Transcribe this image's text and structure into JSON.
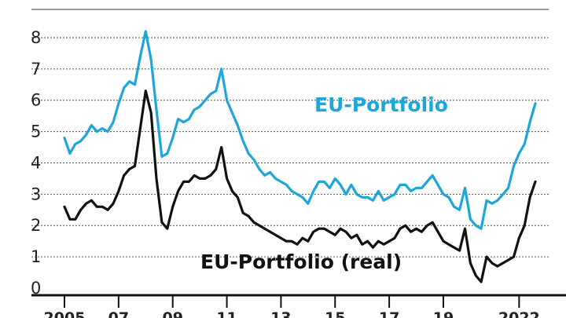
{
  "chart_data": {
    "type": "line",
    "title": "",
    "xlabel": "",
    "ylabel": "",
    "ylim": [
      0,
      8.5
    ],
    "xlim": [
      2004.6,
      2022.9
    ],
    "yticks": [
      "0",
      "1",
      "2",
      "3",
      "4",
      "5",
      "6",
      "7",
      "8"
    ],
    "xticks": [
      {
        "label": "2005",
        "x": 2005
      },
      {
        "label": "07",
        "x": 2007
      },
      {
        "label": "09",
        "x": 2009
      },
      {
        "label": "11",
        "x": 2011
      },
      {
        "label": "13",
        "x": 2013
      },
      {
        "label": "15",
        "x": 2015
      },
      {
        "label": "17",
        "x": 2017
      },
      {
        "label": "19",
        "x": 2019
      },
      {
        "label": "2022",
        "x": 2021.8
      }
    ],
    "grid": true,
    "series": [
      {
        "name": "EU-Portfolio",
        "color": "#1fa6d9",
        "x": [
          2005.0,
          2005.2,
          2005.4,
          2005.6,
          2005.8,
          2006.0,
          2006.2,
          2006.4,
          2006.6,
          2006.8,
          2007.0,
          2007.2,
          2007.4,
          2007.6,
          2007.8,
          2008.0,
          2008.2,
          2008.4,
          2008.6,
          2008.8,
          2009.0,
          2009.2,
          2009.4,
          2009.6,
          2009.8,
          2010.0,
          2010.2,
          2010.4,
          2010.6,
          2010.8,
          2011.0,
          2011.2,
          2011.4,
          2011.6,
          2011.8,
          2012.0,
          2012.2,
          2012.4,
          2012.6,
          2012.8,
          2013.0,
          2013.2,
          2013.4,
          2013.6,
          2013.8,
          2014.0,
          2014.2,
          2014.4,
          2014.6,
          2014.8,
          2015.0,
          2015.2,
          2015.4,
          2015.6,
          2015.8,
          2016.0,
          2016.2,
          2016.4,
          2016.6,
          2016.8,
          2017.0,
          2017.2,
          2017.4,
          2017.6,
          2017.8,
          2018.0,
          2018.2,
          2018.4,
          2018.6,
          2018.8,
          2019.0,
          2019.2,
          2019.4,
          2019.6,
          2019.8,
          2020.0,
          2020.2,
          2020.4,
          2020.6,
          2020.8,
          2021.0,
          2021.2,
          2021.4,
          2021.6,
          2021.8,
          2022.0,
          2022.2,
          2022.4
        ],
        "values": [
          4.8,
          4.3,
          4.6,
          4.7,
          4.9,
          5.2,
          5.0,
          5.1,
          5.0,
          5.3,
          5.9,
          6.4,
          6.6,
          6.5,
          7.4,
          8.2,
          7.3,
          5.7,
          4.2,
          4.3,
          4.8,
          5.4,
          5.3,
          5.4,
          5.7,
          5.8,
          6.0,
          6.2,
          6.3,
          7.0,
          6.0,
          5.6,
          5.2,
          4.7,
          4.3,
          4.1,
          3.8,
          3.6,
          3.7,
          3.5,
          3.4,
          3.3,
          3.1,
          3.0,
          2.9,
          2.7,
          3.1,
          3.4,
          3.4,
          3.2,
          3.5,
          3.3,
          3.0,
          3.3,
          3.0,
          2.9,
          2.9,
          2.8,
          3.1,
          2.8,
          2.9,
          3.0,
          3.3,
          3.3,
          3.1,
          3.2,
          3.2,
          3.4,
          3.6,
          3.3,
          3.0,
          2.9,
          2.6,
          2.5,
          3.2,
          2.2,
          2.0,
          1.9,
          2.8,
          2.7,
          2.8,
          3.0,
          3.2,
          3.9,
          4.3,
          4.6,
          5.3,
          5.9
        ]
      },
      {
        "name": "EU-Portfolio (real)",
        "color": "#111111",
        "x": [
          2005.0,
          2005.2,
          2005.4,
          2005.6,
          2005.8,
          2006.0,
          2006.2,
          2006.4,
          2006.6,
          2006.8,
          2007.0,
          2007.2,
          2007.4,
          2007.6,
          2007.8,
          2008.0,
          2008.2,
          2008.4,
          2008.6,
          2008.8,
          2009.0,
          2009.2,
          2009.4,
          2009.6,
          2009.8,
          2010.0,
          2010.2,
          2010.4,
          2010.6,
          2010.8,
          2011.0,
          2011.2,
          2011.4,
          2011.6,
          2011.8,
          2012.0,
          2012.2,
          2012.4,
          2012.6,
          2012.8,
          2013.0,
          2013.2,
          2013.4,
          2013.6,
          2013.8,
          2014.0,
          2014.2,
          2014.4,
          2014.6,
          2014.8,
          2015.0,
          2015.2,
          2015.4,
          2015.6,
          2015.8,
          2016.0,
          2016.2,
          2016.4,
          2016.6,
          2016.8,
          2017.0,
          2017.2,
          2017.4,
          2017.6,
          2017.8,
          2018.0,
          2018.2,
          2018.4,
          2018.6,
          2018.8,
          2019.0,
          2019.2,
          2019.4,
          2019.6,
          2019.8,
          2020.0,
          2020.2,
          2020.4,
          2020.6,
          2020.8,
          2021.0,
          2021.2,
          2021.4,
          2021.6,
          2021.8,
          2022.0,
          2022.2,
          2022.4
        ],
        "values": [
          2.6,
          2.2,
          2.2,
          2.5,
          2.7,
          2.8,
          2.6,
          2.6,
          2.5,
          2.7,
          3.1,
          3.6,
          3.8,
          3.9,
          5.1,
          6.3,
          5.6,
          3.5,
          2.1,
          1.9,
          2.6,
          3.1,
          3.4,
          3.4,
          3.6,
          3.5,
          3.5,
          3.6,
          3.8,
          4.5,
          3.5,
          3.1,
          2.9,
          2.4,
          2.3,
          2.1,
          2.0,
          1.9,
          1.8,
          1.7,
          1.6,
          1.5,
          1.5,
          1.4,
          1.6,
          1.5,
          1.8,
          1.9,
          1.9,
          1.8,
          1.7,
          1.9,
          1.8,
          1.6,
          1.7,
          1.4,
          1.5,
          1.3,
          1.5,
          1.4,
          1.5,
          1.6,
          1.9,
          2.0,
          1.8,
          1.9,
          1.8,
          2.0,
          2.1,
          1.8,
          1.5,
          1.4,
          1.3,
          1.2,
          1.9,
          0.8,
          0.4,
          0.2,
          1.0,
          0.8,
          0.7,
          0.8,
          0.9,
          1.0,
          1.6,
          2.0,
          2.9,
          3.4
        ]
      }
    ]
  }
}
